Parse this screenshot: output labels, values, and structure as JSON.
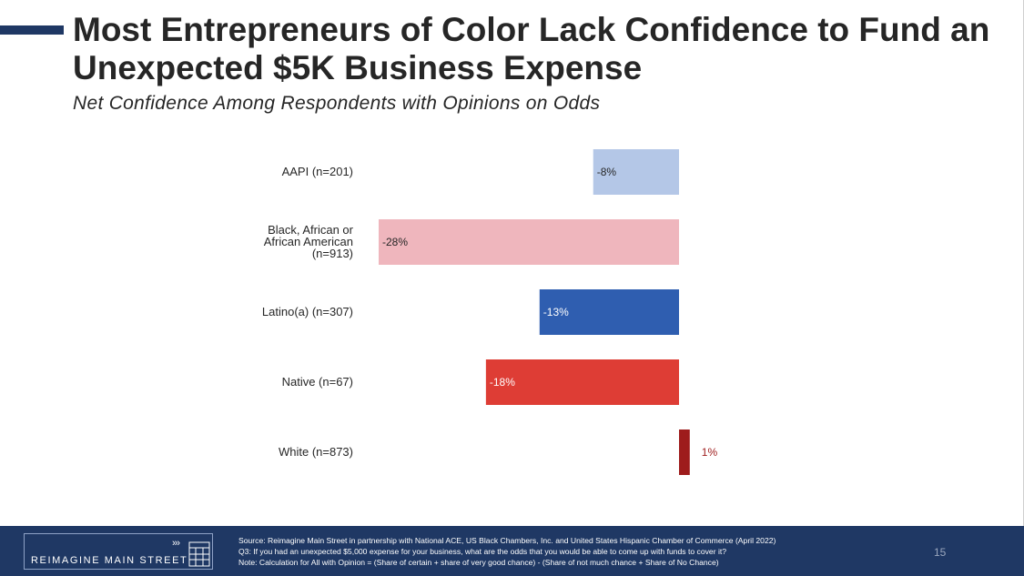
{
  "header": {
    "title": "Most Entrepreneurs of Color Lack Confidence to Fund an Unexpected $5K Business Expense",
    "subtitle": "Net Confidence Among Respondents with Opinions on Odds"
  },
  "chart_data": {
    "type": "bar",
    "orientation": "horizontal",
    "title": "Net Confidence Among Respondents with Opinions on Odds",
    "categories": [
      [
        "AAPI (n=201)"
      ],
      [
        "Black, African or",
        "African American",
        "(n=913)"
      ],
      [
        "Latino(a) (n=307)"
      ],
      [
        "Native (n=67)"
      ],
      [
        "White (n=873)"
      ]
    ],
    "values": [
      -8,
      -28,
      -13,
      -18,
      1
    ],
    "data_labels": [
      "-8%",
      "-28%",
      "-13%",
      "-18%",
      "1%"
    ],
    "colors": [
      "#b4c7e7",
      "#efb6bd",
      "#2f5eb0",
      "#de3d35",
      "#9e1c1c"
    ],
    "label_colors": [
      "#262626",
      "#262626",
      "#ffffff",
      "#ffffff",
      "#9e1c1c"
    ],
    "xlim": [
      -30,
      2
    ],
    "grid": false,
    "legend": "none"
  },
  "footer": {
    "logo_text": "REIMAGINE MAIN STREET",
    "arrows": "›››",
    "source": "Source: Reimagine Main Street in partnership with National ACE, US Black Chambers, Inc. and United States Hispanic Chamber of Commerce (April 2022)",
    "question": "Q3: If you had an unexpected $5,000 expense for your business, what are the odds that you would be able to come up with funds to cover it?",
    "note": "Note: Calculation for  All with Opinion = (Share of certain + share of very good chance) - (Share of not much chance + Share of No Chance)",
    "page_number": "15"
  }
}
